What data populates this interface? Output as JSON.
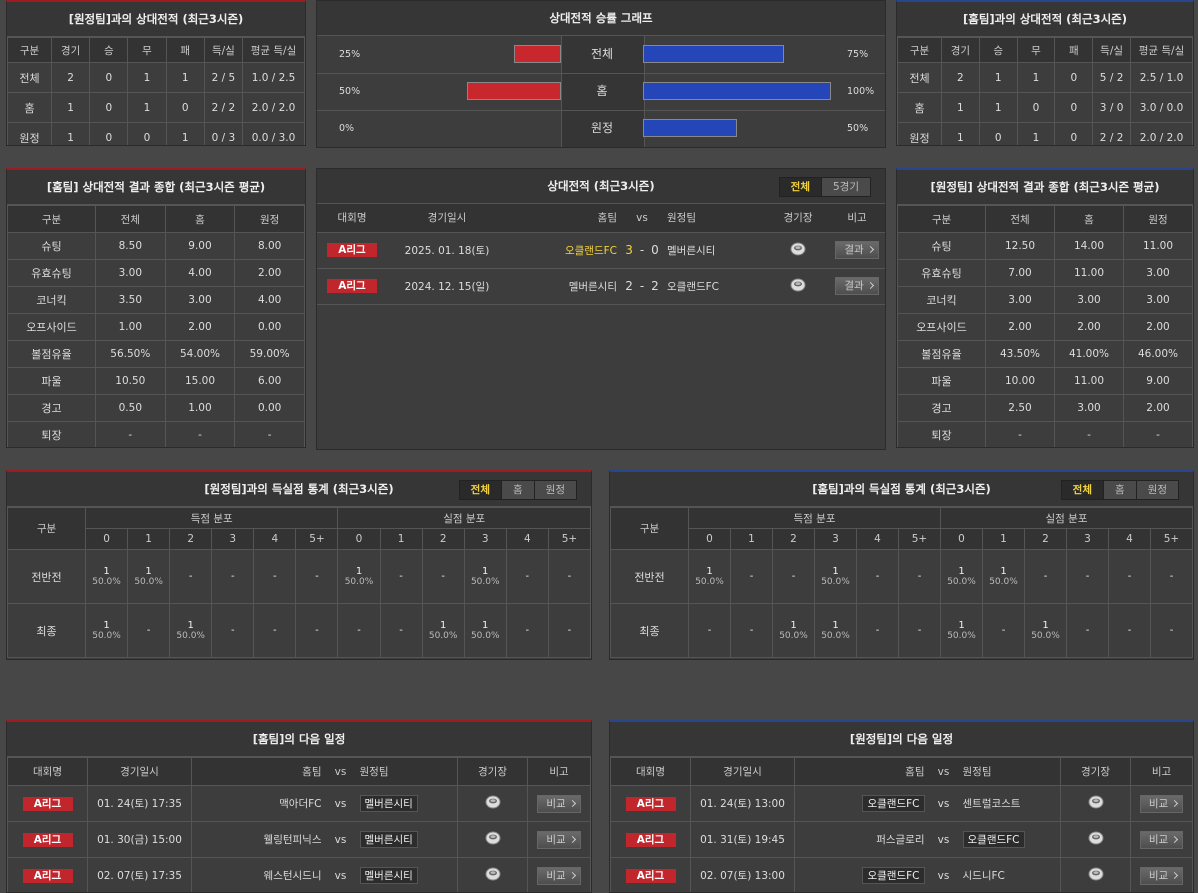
{
  "away_h2h": {
    "title": "[원정팀]과의 상대전적 (최근3시즌)",
    "headers": [
      "구분",
      "경기",
      "승",
      "무",
      "패",
      "득/실",
      "평균 득/실"
    ],
    "rows": [
      [
        "전체",
        "2",
        "0",
        "1",
        "1",
        "2 / 5",
        "1.0 / 2.5"
      ],
      [
        "홈",
        "1",
        "0",
        "1",
        "0",
        "2 / 2",
        "2.0 / 2.0"
      ],
      [
        "원정",
        "1",
        "0",
        "0",
        "1",
        "0 / 3",
        "0.0 / 3.0"
      ]
    ]
  },
  "win_graph": {
    "title": "상대전적 승률 그래프",
    "categories": [
      "전체",
      "홈",
      "원정"
    ],
    "left": {
      "color": "#c8282d",
      "values": [
        25,
        50,
        0
      ],
      "value_labels": [
        "25%",
        "50%",
        "0%"
      ]
    },
    "right": {
      "color": "#2446b8",
      "values": [
        75,
        100,
        50
      ],
      "value_labels": [
        "75%",
        "100%",
        "50%"
      ]
    },
    "xlim": [
      0,
      100
    ]
  },
  "home_h2h": {
    "title": "[홈팀]과의 상대전적 (최근3시즌)",
    "headers": [
      "구분",
      "경기",
      "승",
      "무",
      "패",
      "득/실",
      "평균 득/실"
    ],
    "rows": [
      [
        "전체",
        "2",
        "1",
        "1",
        "0",
        "5 / 2",
        "2.5 / 1.0"
      ],
      [
        "홈",
        "1",
        "1",
        "0",
        "0",
        "3 / 0",
        "3.0 / 0.0"
      ],
      [
        "원정",
        "1",
        "0",
        "1",
        "0",
        "2 / 2",
        "2.0 / 2.0"
      ]
    ]
  },
  "home_summary": {
    "title": "[홈팀] 상대전적 결과 종합 (최근3시즌 평균)",
    "headers": [
      "구분",
      "전체",
      "홈",
      "원정"
    ],
    "rows": [
      [
        "슈팅",
        "8.50",
        "9.00",
        "8.00"
      ],
      [
        "유효슈팅",
        "3.00",
        "4.00",
        "2.00"
      ],
      [
        "코너킥",
        "3.50",
        "3.00",
        "4.00"
      ],
      [
        "오프사이드",
        "1.00",
        "2.00",
        "0.00"
      ],
      [
        "볼점유율",
        "56.50%",
        "54.00%",
        "59.00%"
      ],
      [
        "파울",
        "10.50",
        "15.00",
        "6.00"
      ],
      [
        "경고",
        "0.50",
        "1.00",
        "0.00"
      ],
      [
        "퇴장",
        "-",
        "-",
        "-"
      ]
    ]
  },
  "h2h_matches": {
    "title": "상대전적 (최근3시즌)",
    "tabs": [
      "전체",
      "5경기"
    ],
    "headers": [
      "대회명",
      "경기일시",
      "홈팀",
      "vs",
      "원정팀",
      "경기장",
      "비고"
    ],
    "score_separator": "-",
    "rows": [
      {
        "league": "A리그",
        "date": "2025. 01. 18(토)",
        "home": "오클랜드FC",
        "home_score": "3",
        "away_score": "0",
        "away": "멜버른시티",
        "winner": "home",
        "note": "결과"
      },
      {
        "league": "A리그",
        "date": "2024. 12. 15(일)",
        "home": "멜버른시티",
        "home_score": "2",
        "away_score": "2",
        "away": "오클랜드FC",
        "winner": "none",
        "note": "결과"
      }
    ]
  },
  "away_summary": {
    "title": "[원정팀] 상대전적 결과 종합 (최근3시즌 평균)",
    "headers": [
      "구분",
      "전체",
      "홈",
      "원정"
    ],
    "rows": [
      [
        "슈팅",
        "12.50",
        "14.00",
        "11.00"
      ],
      [
        "유효슈팅",
        "7.00",
        "11.00",
        "3.00"
      ],
      [
        "코너킥",
        "3.00",
        "3.00",
        "3.00"
      ],
      [
        "오프사이드",
        "2.00",
        "2.00",
        "2.00"
      ],
      [
        "볼점유율",
        "43.50%",
        "41.00%",
        "46.00%"
      ],
      [
        "파울",
        "10.00",
        "11.00",
        "9.00"
      ],
      [
        "경고",
        "2.50",
        "3.00",
        "2.00"
      ],
      [
        "퇴장",
        "-",
        "-",
        "-"
      ]
    ]
  },
  "away_goal_stats": {
    "title": "[원정팀]과의 득실점 통계 (최근3시즌)",
    "tabs": [
      "전체",
      "홈",
      "원정"
    ],
    "row_header": "구분",
    "groups": [
      "득점 분포",
      "실점 분포"
    ],
    "goals": [
      "0",
      "1",
      "2",
      "3",
      "4",
      "5+"
    ],
    "rows": [
      {
        "label": "전반전",
        "scored": [
          [
            "1",
            "50.0%"
          ],
          [
            "1",
            "50.0%"
          ],
          [
            "-"
          ],
          [
            "-"
          ],
          [
            "-"
          ],
          [
            "-"
          ]
        ],
        "conceded": [
          [
            "1",
            "50.0%"
          ],
          [
            "-"
          ],
          [
            "-"
          ],
          [
            "1",
            "50.0%"
          ],
          [
            "-"
          ],
          [
            "-"
          ]
        ]
      },
      {
        "label": "최종",
        "scored": [
          [
            "1",
            "50.0%"
          ],
          [
            "-"
          ],
          [
            "1",
            "50.0%"
          ],
          [
            "-"
          ],
          [
            "-"
          ],
          [
            "-"
          ]
        ],
        "conceded": [
          [
            "-"
          ],
          [
            "-"
          ],
          [
            "1",
            "50.0%"
          ],
          [
            "1",
            "50.0%"
          ],
          [
            "-"
          ],
          [
            "-"
          ]
        ]
      }
    ]
  },
  "home_goal_stats": {
    "title": "[홈팀]과의 득실점 통계 (최근3시즌)",
    "tabs": [
      "전체",
      "홈",
      "원정"
    ],
    "row_header": "구분",
    "groups": [
      "득점 분포",
      "실점 분포"
    ],
    "goals": [
      "0",
      "1",
      "2",
      "3",
      "4",
      "5+"
    ],
    "rows": [
      {
        "label": "전반전",
        "scored": [
          [
            "1",
            "50.0%"
          ],
          [
            "-"
          ],
          [
            "-"
          ],
          [
            "1",
            "50.0%"
          ],
          [
            "-"
          ],
          [
            "-"
          ]
        ],
        "conceded": [
          [
            "1",
            "50.0%"
          ],
          [
            "1",
            "50.0%"
          ],
          [
            "-"
          ],
          [
            "-"
          ],
          [
            "-"
          ],
          [
            "-"
          ]
        ]
      },
      {
        "label": "최종",
        "scored": [
          [
            "-"
          ],
          [
            "-"
          ],
          [
            "1",
            "50.0%"
          ],
          [
            "1",
            "50.0%"
          ],
          [
            "-"
          ],
          [
            "-"
          ]
        ],
        "conceded": [
          [
            "1",
            "50.0%"
          ],
          [
            "-"
          ],
          [
            "1",
            "50.0%"
          ],
          [
            "-"
          ],
          [
            "-"
          ],
          [
            "-"
          ]
        ]
      }
    ]
  },
  "home_next": {
    "title": "[홈팀]의 다음 일정",
    "headers": [
      "대회명",
      "경기일시",
      "홈팀",
      "vs",
      "원정팀",
      "경기장",
      "비고"
    ],
    "rows": [
      {
        "league": "A리그",
        "date": "01. 24(토) 17:35",
        "home": "맥아더FC",
        "away": "멜버른시티",
        "focus": "away",
        "note": "비교"
      },
      {
        "league": "A리그",
        "date": "01. 30(금) 15:00",
        "home": "웰링턴피닉스",
        "away": "멜버른시티",
        "focus": "away",
        "note": "비교"
      },
      {
        "league": "A리그",
        "date": "02. 07(토) 17:35",
        "home": "웨스턴시드니",
        "away": "멜버른시티",
        "focus": "away",
        "note": "비교"
      }
    ]
  },
  "away_next": {
    "title": "[원정팀]의 다음 일정",
    "headers": [
      "대회명",
      "경기일시",
      "홈팀",
      "vs",
      "원정팀",
      "경기장",
      "비고"
    ],
    "rows": [
      {
        "league": "A리그",
        "date": "01. 24(토) 13:00",
        "home": "오클랜드FC",
        "away": "센트럴코스트",
        "focus": "home",
        "note": "비교"
      },
      {
        "league": "A리그",
        "date": "01. 31(토) 19:45",
        "home": "퍼스글로리",
        "away": "오클랜드FC",
        "focus": "away",
        "note": "비교"
      },
      {
        "league": "A리그",
        "date": "02. 07(토) 13:00",
        "home": "오클랜드FC",
        "away": "시드니FC",
        "focus": "home",
        "note": "비교"
      }
    ]
  }
}
